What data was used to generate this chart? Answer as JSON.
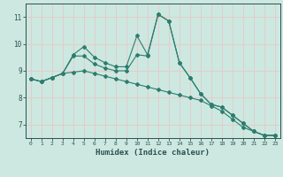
{
  "xlabel": "Humidex (Indice chaleur)",
  "background_color": "#cce8e0",
  "grid_color": "#e8c8c8",
  "line_color": "#2e7d6e",
  "ylim": [
    6.5,
    11.5
  ],
  "xlim": [
    -0.5,
    23.5
  ],
  "yticks": [
    7,
    8,
    9,
    10,
    11
  ],
  "xticks": [
    0,
    1,
    2,
    3,
    4,
    5,
    6,
    7,
    8,
    9,
    10,
    11,
    12,
    13,
    14,
    15,
    16,
    17,
    18,
    19,
    20,
    21,
    22,
    23
  ],
  "series": [
    [
      8.7,
      8.6,
      8.75,
      8.9,
      9.6,
      9.9,
      9.5,
      9.3,
      9.15,
      9.15,
      10.3,
      9.6,
      11.1,
      10.85,
      9.3,
      8.75,
      8.15,
      7.75,
      7.65,
      7.35,
      7.05,
      6.75,
      6.6,
      6.6
    ],
    [
      8.7,
      8.6,
      8.75,
      8.9,
      9.55,
      9.55,
      9.25,
      9.1,
      9.0,
      9.0,
      9.6,
      9.55,
      11.1,
      10.85,
      9.3,
      8.75,
      8.15,
      7.75,
      7.65,
      7.35,
      7.05,
      6.75,
      6.6,
      6.6
    ],
    [
      8.7,
      8.6,
      8.75,
      8.9,
      8.95,
      9.0,
      8.9,
      8.8,
      8.7,
      8.6,
      8.5,
      8.4,
      8.3,
      8.2,
      8.1,
      8.0,
      7.9,
      7.7,
      7.5,
      7.2,
      6.9,
      6.75,
      6.6,
      6.6
    ]
  ]
}
